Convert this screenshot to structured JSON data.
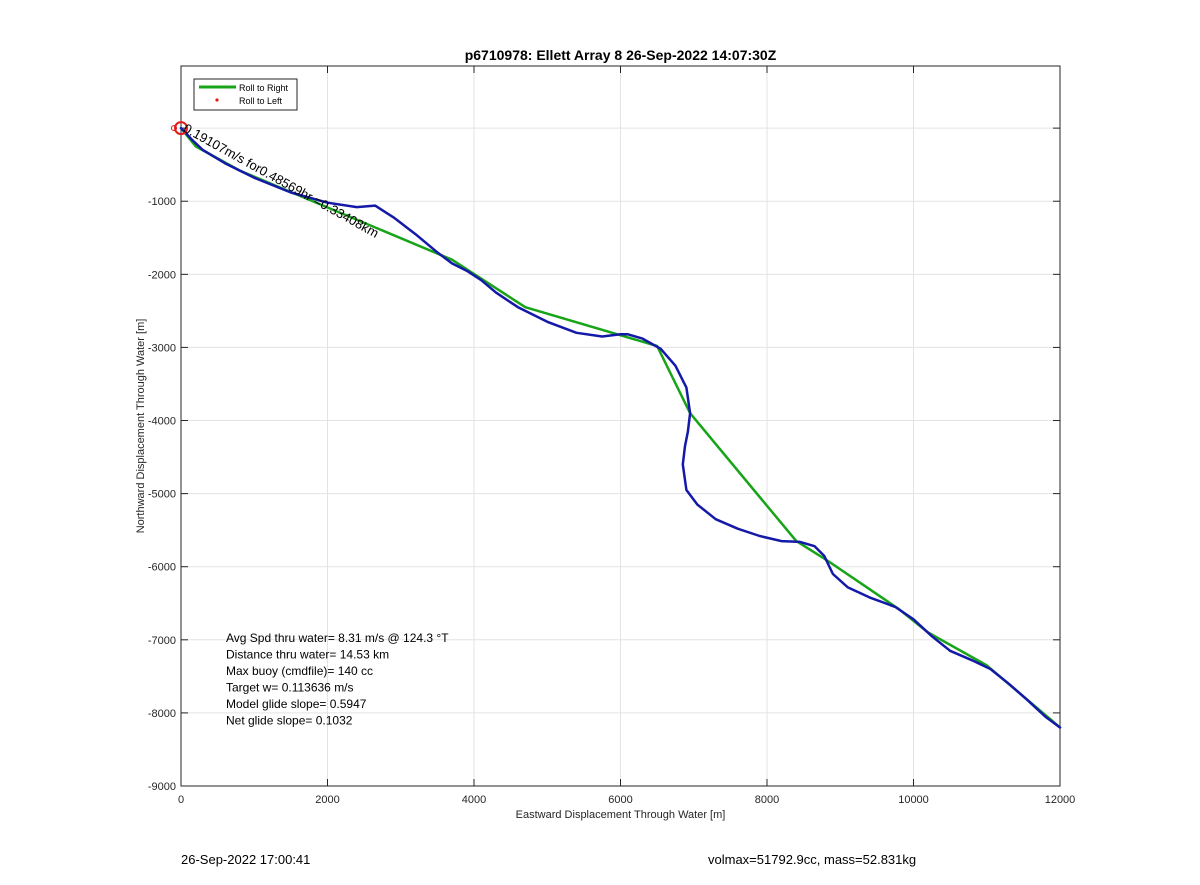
{
  "chart_data": {
    "type": "line",
    "title": "p6710978: Ellett Array 8 26-Sep-2022 14:07:30Z",
    "xlabel": "Eastward Displacement Through Water [m]",
    "ylabel": "Northward Displacement Through Water [m]",
    "xlim": [
      0,
      12000
    ],
    "ylim": [
      -9000,
      850
    ],
    "xticks": [
      0,
      2000,
      4000,
      6000,
      8000,
      10000,
      12000
    ],
    "yticks": [
      -9000,
      -8000,
      -7000,
      -6000,
      -5000,
      -4000,
      -3000,
      -2000,
      -1000
    ],
    "grid": true,
    "legend_position": "top-left",
    "series": [
      {
        "name": "Roll to Right",
        "color": "#18a418",
        "x": [
          0,
          200,
          800,
          3700,
          4700,
          6500,
          6950,
          8400,
          8800,
          9800,
          10200,
          11000,
          12000
        ],
        "y": [
          0,
          -250,
          -580,
          -1800,
          -2450,
          -2980,
          -3900,
          -5650,
          -5900,
          -6580,
          -6900,
          -7350,
          -8200
        ]
      },
      {
        "name": "Roll to Left",
        "color": "#e41a1c",
        "marker": "dot",
        "x": [],
        "y": []
      },
      {
        "color": "#1419a8",
        "x": [
          0,
          60,
          150,
          300,
          600,
          1000,
          1500,
          2000,
          2400,
          2650,
          2900,
          3200,
          3500,
          3700,
          3900,
          4100,
          4300,
          4600,
          5000,
          5400,
          5750,
          6000,
          6100,
          6300,
          6550,
          6750,
          6900,
          6950,
          6920,
          6880,
          6850,
          6900,
          7050,
          7300,
          7600,
          7900,
          8200,
          8450,
          8650,
          8780,
          8900,
          9100,
          9400,
          9750,
          10000,
          10250,
          10500,
          10800,
          11050,
          11300,
          11550,
          11800,
          12000
        ],
        "y": [
          0,
          -60,
          -160,
          -300,
          -480,
          -680,
          -880,
          -1020,
          -1080,
          -1060,
          -1220,
          -1450,
          -1700,
          -1850,
          -1950,
          -2080,
          -2250,
          -2450,
          -2650,
          -2800,
          -2850,
          -2820,
          -2820,
          -2880,
          -3020,
          -3250,
          -3550,
          -3900,
          -4150,
          -4350,
          -4600,
          -4950,
          -5150,
          -5350,
          -5480,
          -5580,
          -5650,
          -5660,
          -5720,
          -5850,
          -6100,
          -6280,
          -6420,
          -6550,
          -6720,
          -6950,
          -7150,
          -7280,
          -7400,
          -7600,
          -7820,
          -8050,
          -8200
        ]
      }
    ],
    "start_marker": {
      "x": 0,
      "y": 0,
      "color": "#e41a1c"
    },
    "annotation": {
      "text": "0.19107m/s for0.48569hr =0.33408km",
      "x": 20,
      "y": -40,
      "angle_deg": 29
    },
    "overlay_texts": [
      "Avg Spd thru water=  8.31 m/s @ 124.3 °T",
      "Distance thru water= 14.53 km",
      "Max buoy (cmdfile)= 140 cc",
      "Target w= 0.113636 m/s",
      "Model glide slope= 0.5947",
      "Net glide slope= 0.1032"
    ]
  },
  "footer": {
    "left": "26-Sep-2022 17:00:41",
    "right": "volmax=51792.9cc, mass=52.831kg"
  }
}
